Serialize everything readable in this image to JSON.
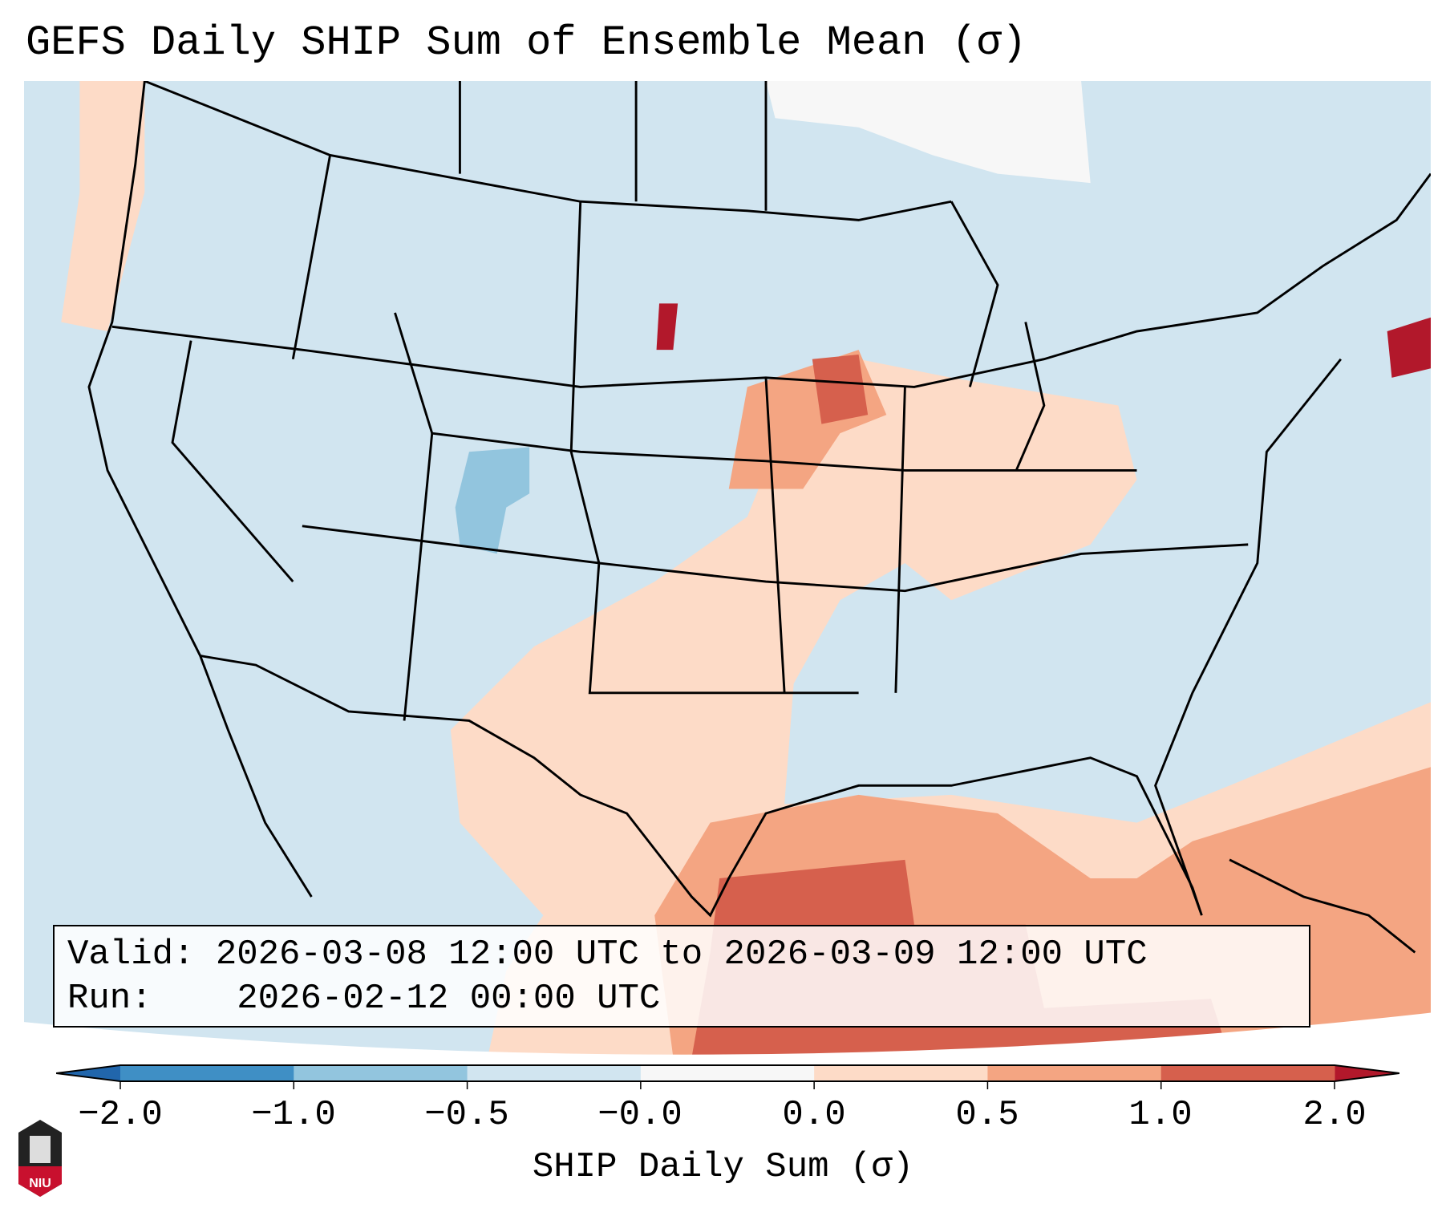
{
  "title": "GEFS Daily SHIP Sum of Ensemble Mean (σ)",
  "legend_box": {
    "valid_label": "Valid:",
    "valid_value": "2026-03-08 12:00 UTC to 2026-03-09 12:00 UTC",
    "run_label": "Run:",
    "run_value": "2026-02-12 00:00 UTC"
  },
  "colorbar": {
    "label": "SHIP Daily Sum (σ)",
    "ticks": [
      "−2.0",
      "−1.0",
      "−0.5",
      "−0.0",
      "0.0",
      "0.5",
      "1.0",
      "2.0"
    ],
    "colors": [
      "#3f8fc5",
      "#92c5de",
      "#d1e5f0",
      "#f7f7f7",
      "#fddbc7",
      "#f4a582",
      "#d6604d"
    ],
    "extend_low": "#2166ac",
    "extend_high": "#b2182b"
  },
  "logo": {
    "text": "NIU"
  },
  "map": {
    "ocean_land_base": "#d1e5f0",
    "outline": "#000000"
  }
}
